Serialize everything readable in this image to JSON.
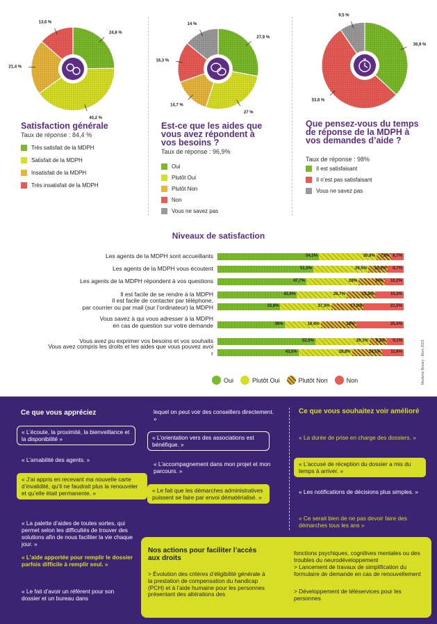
{
  "charts": [
    {
      "title": "Satisfaction générale",
      "rate": "Taux de réponse : 84,4 %",
      "icon": "people-faces-icon",
      "slices": [
        {
          "label": "24,8 %",
          "value": 24.8,
          "color": "#7ab929"
        },
        {
          "label": "40,2 %",
          "value": 40.2,
          "color": "#d7de25"
        },
        {
          "label": "21,4 %",
          "value": 21.4,
          "color": "#e7b53c"
        },
        {
          "label": "13,6 %",
          "value": 13.6,
          "color": "#e85b55"
        }
      ],
      "legend": [
        {
          "label": "Très satisfait de la MDPH",
          "color": "#7ab929"
        },
        {
          "label": "Satisfait de la MDPH",
          "color": "#d7de25"
        },
        {
          "label": "Insatisfait de la MDPH",
          "color": "#e7b53c"
        },
        {
          "label": "Très insatisfait de la MDPH",
          "color": "#e85b55"
        }
      ]
    },
    {
      "title": "Est-ce que les aides que vous avez répondent à vos besoins ?",
      "rate": "Taux de réponse : 96,9%",
      "icon": "speech-bubbles-icon",
      "slices": [
        {
          "label": "27,9 %",
          "value": 27.9,
          "color": "#7ab929"
        },
        {
          "label": "27 %",
          "value": 27,
          "color": "#d7de25"
        },
        {
          "label": "14,7 %",
          "value": 14.7,
          "color": "#e7b53c"
        },
        {
          "label": "16,3 %",
          "value": 16.3,
          "color": "#e85b55"
        },
        {
          "label": "14 %",
          "value": 14,
          "color": "#9a9a9a"
        }
      ],
      "legend": [
        {
          "label": "Oui",
          "color": "#7ab929"
        },
        {
          "label": "Plutôt Oui",
          "color": "#d7de25"
        },
        {
          "label": "Plutôt Non",
          "color": "#e7b53c"
        },
        {
          "label": "Non",
          "color": "#e85b55"
        },
        {
          "label": "Vous ne savez pas",
          "color": "#9a9a9a"
        }
      ]
    },
    {
      "title": "Que pensez-vous du temps de réponse de la MDPH à vos demandes d’aide ?",
      "rate": "Taux de réponse : 98%",
      "icon": "stopwatch-icon",
      "slices": [
        {
          "label": "36,9 %",
          "value": 36.9,
          "color": "#7ab929"
        },
        {
          "label": "53,6 %",
          "value": 53.6,
          "color": "#e85b55"
        },
        {
          "label": "9,5 %",
          "value": 9.5,
          "color": "#9a9a9a"
        }
      ],
      "legend": [
        {
          "label": "Il est satisfaisant",
          "color": "#7ab929"
        },
        {
          "label": "Il n’est pas satisfaisant",
          "color": "#e85b55"
        },
        {
          "label": "Vous ne savez pas",
          "color": "#9a9a9a"
        }
      ]
    }
  ],
  "chart_data": {
    "type": "bar",
    "title": "Niveaux de satisfaction",
    "categories": [
      "Les agents de la MDPH sont accueillants",
      "Les agents de la MDPH vous écoutent",
      "Les agents de la MDPH répondent à vos questions",
      "Il est facile de se rendre à la MDPH",
      "Il est facile de contacter par téléphone, par courrier ou par mail (sur l’ordinateur) la MDPH",
      "Vous savez à qui vous adresser à la MDPH en cas de question sur votre demande",
      "Vous avez pu exprimer vos besoins et vos souhaits",
      "Vous avez compris les droits et les aides que vous pouvez avoir"
    ],
    "series": [
      {
        "name": "Oui",
        "color": "#7ab929",
        "values": [
          54.5,
          51.5,
          47.7,
          42.6,
          33.8,
          36,
          52.5,
          43.5
        ],
        "labels": [
          "54,5%",
          "51,5%",
          "47,7%",
          "42,6%",
          "33,8%",
          "36%",
          "52,5%",
          "43,5%"
        ]
      },
      {
        "name": "Plutôt Oui",
        "color": "#d7de25",
        "values": [
          30.9,
          29.5,
          28,
          26.7,
          27.3,
          19.4,
          29.1,
          28.8
        ],
        "labels": [
          "30,9%",
          "29,5%",
          "28%",
          "26,7%",
          "27,3%",
          "19,4%",
          "29,1%",
          "28,8%"
        ]
      },
      {
        "name": "Plutôt Non",
        "color": "#e7b53c",
        "values": [
          7.9,
          10.3,
          14,
          15.3,
          17.5,
          19,
          9.2,
          16.1
        ],
        "labels": [
          "7,9%",
          "10,3%",
          "14%",
          "15,3%",
          "17,5%",
          "19%",
          "9,2%",
          "16,1%"
        ]
      },
      {
        "name": "Non",
        "color": "#e85b55",
        "values": [
          6.7,
          8.7,
          10.2,
          15.3,
          21.5,
          25.5,
          9.1,
          11.6
        ],
        "labels": [
          "6,7%",
          "8,7%",
          "10,2%",
          "15,3%",
          "21,5%",
          "25,5%",
          "9,1%",
          "11,6%"
        ]
      }
    ],
    "stacked": true,
    "legend_position": "bottom"
  },
  "credit": "Madame Bovary - Mars 2023",
  "appreciate": {
    "title": "Ce que vous appréciez",
    "q1": "« L’écoute, la proximité, la bienveillance et la disponibilité »",
    "q2": "« L’amabilité des agents. »",
    "q3": "« J’ai appris en recevant ma nouvelle carte d’invalidité, qu’il ne faudrait plus la renouveler et qu’elle était permanente. »",
    "q4": "« La palette d’aides de toutes sortes, qui permet selon les difficultés de trouver des solutions afin de nous faciliter la vie chaque jour. »",
    "q5": "« L’aide apportée pour remplir le dossier parfois difficile à remplir seul. »",
    "q6": "« Le fait d’avoir un référent pour son dossier et un bureau dans",
    "q6b": "lequel on peut voir des conseillers directement. »",
    "q7": "« L’orientation vers des associations est bénéfique. »",
    "q8": "« L’accompagnement dans mon projet et mon parcours. »",
    "q9": "« Le fait que les démarches administratives puissent se faire par envoi dématérialisé. »"
  },
  "improve": {
    "title": "Ce que vous souhaitez voir amélioré",
    "q1": "« La durée de prise en charge des dossiers. »",
    "q2": "« L’accusé de réception du dossier a mis du temps à arriver. »",
    "q3": "« Les notifications de décisions plus simples. »",
    "q4": "« Ce serait bien de ne pas devoir faire des démarches tous les ans »"
  },
  "actions": {
    "title": "Nos actions pour faciliter l’accès aux droits",
    "a1": "> Évolution des critères d’éligibilité générale à la prestation de compensation du handicap (PCH) et à l’aide humaine pour les personnes présentant des altérations des",
    "a1b": "fonctions psychiques, cognitives mentales ou des troubles du neurodéveloppement",
    "a2": "> Lancement de travaux de simplification du formulaire de demande en cas de renouvellement",
    "a3": "> Développement de téléservices pour les personnes"
  }
}
